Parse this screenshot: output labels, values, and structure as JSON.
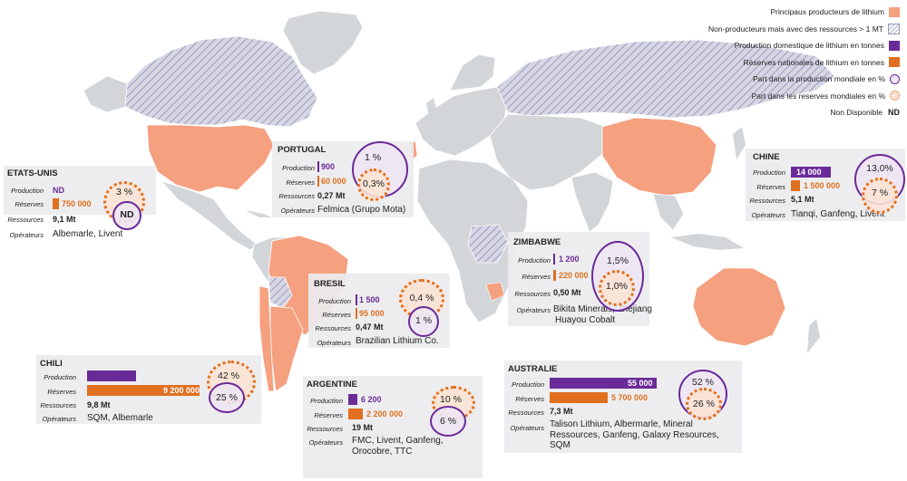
{
  "legend": {
    "main_producers": "Principaux producteurs de lithium",
    "non_producers": "Non-producteurs mais avec des ressources > 1 MT",
    "domestic_production": "Production domestique de lithium en tonnes",
    "national_reserves": "Réserves nationales de lithium en tonnes",
    "share_production": "Part dans la production mondiale en %",
    "share_reserves": "Part dans les reserves mondiales en %",
    "not_available": "Non Disponible",
    "nd_symbol": "ND"
  },
  "labels": {
    "production": "Production",
    "reserves": "Réserves",
    "resources": "Ressources",
    "operators": "Opérateurs"
  },
  "colors": {
    "producer_country": "#F5A07F",
    "production": "#6A2A98",
    "reserves": "#E0701F",
    "land": "#D3D6D9",
    "hatch": "#8C8CB8"
  },
  "countries": {
    "usa": {
      "name": "ETATS-UNIS",
      "production": "ND",
      "production_t": null,
      "reserves": "750 000",
      "reserves_t": 750000,
      "resources": "9,1 Mt",
      "operators": "Albemarle, Livent",
      "share_production": "ND",
      "share_reserves": "3 %"
    },
    "portugal": {
      "name": "PORTUGAL",
      "production": "900",
      "production_t": 900,
      "reserves": "60 000",
      "reserves_t": 60000,
      "resources": "0,27 Mt",
      "operators": "Felmica (Grupo Mota)",
      "share_production": "1 %",
      "share_reserves": "0,3%"
    },
    "china": {
      "name": "CHINE",
      "production": "14 000",
      "production_t": 14000,
      "reserves": "1 500 000",
      "reserves_t": 1500000,
      "resources": "5,1 Mt",
      "operators": "Tianqi, Ganfeng, Livent",
      "share_production": "13,0%",
      "share_reserves": "7 %"
    },
    "zimbabwe": {
      "name": "ZIMBABWE",
      "production": "1 200",
      "production_t": 1200,
      "reserves": "220 000",
      "reserves_t": 220000,
      "resources": "0,50 Mt",
      "operators_1": "Bikita Minerals, Zhejiang",
      "operators_2": "Huayou Cobalt",
      "share_production": "1,5%",
      "share_reserves": "1,0%"
    },
    "brazil": {
      "name": "BRESIL",
      "production": "1 500",
      "production_t": 1500,
      "reserves": "95 000",
      "reserves_t": 95000,
      "resources": "0,47 Mt",
      "operators": "Brazilian Lithium Co.",
      "share_production": "1 %",
      "share_reserves": "0,4 %"
    },
    "chile": {
      "name": "CHILI",
      "production": "26 000",
      "production_t": 26000,
      "reserves": "9 200 000",
      "reserves_t": 9200000,
      "resources": "9,8 Mt",
      "operators": "SQM, Albemarle",
      "share_production": "25 %",
      "share_reserves": "42 %"
    },
    "argentina": {
      "name": "ARGENTINE",
      "production": "6 200",
      "production_t": 6200,
      "reserves": "2 200 000",
      "reserves_t": 2200000,
      "resources": "19 Mt",
      "operators_1": "FMC, Livent, Ganfeng,",
      "operators_2": "Orocobre, TTC",
      "share_production": "6 %",
      "share_reserves": "10 %"
    },
    "australia": {
      "name": "AUSTRALIE",
      "production": "55 000",
      "production_t": 55000,
      "reserves": "5 700 000",
      "reserves_t": 5700000,
      "resources": "7,3 Mt",
      "operators_1": "Talison Lithium, Albermarle, Mineral",
      "operators_2": "Ressources, Ganfeng, Galaxy Resources,",
      "operators_3": "SQM",
      "share_production": "52 %",
      "share_reserves": "26 %"
    }
  }
}
